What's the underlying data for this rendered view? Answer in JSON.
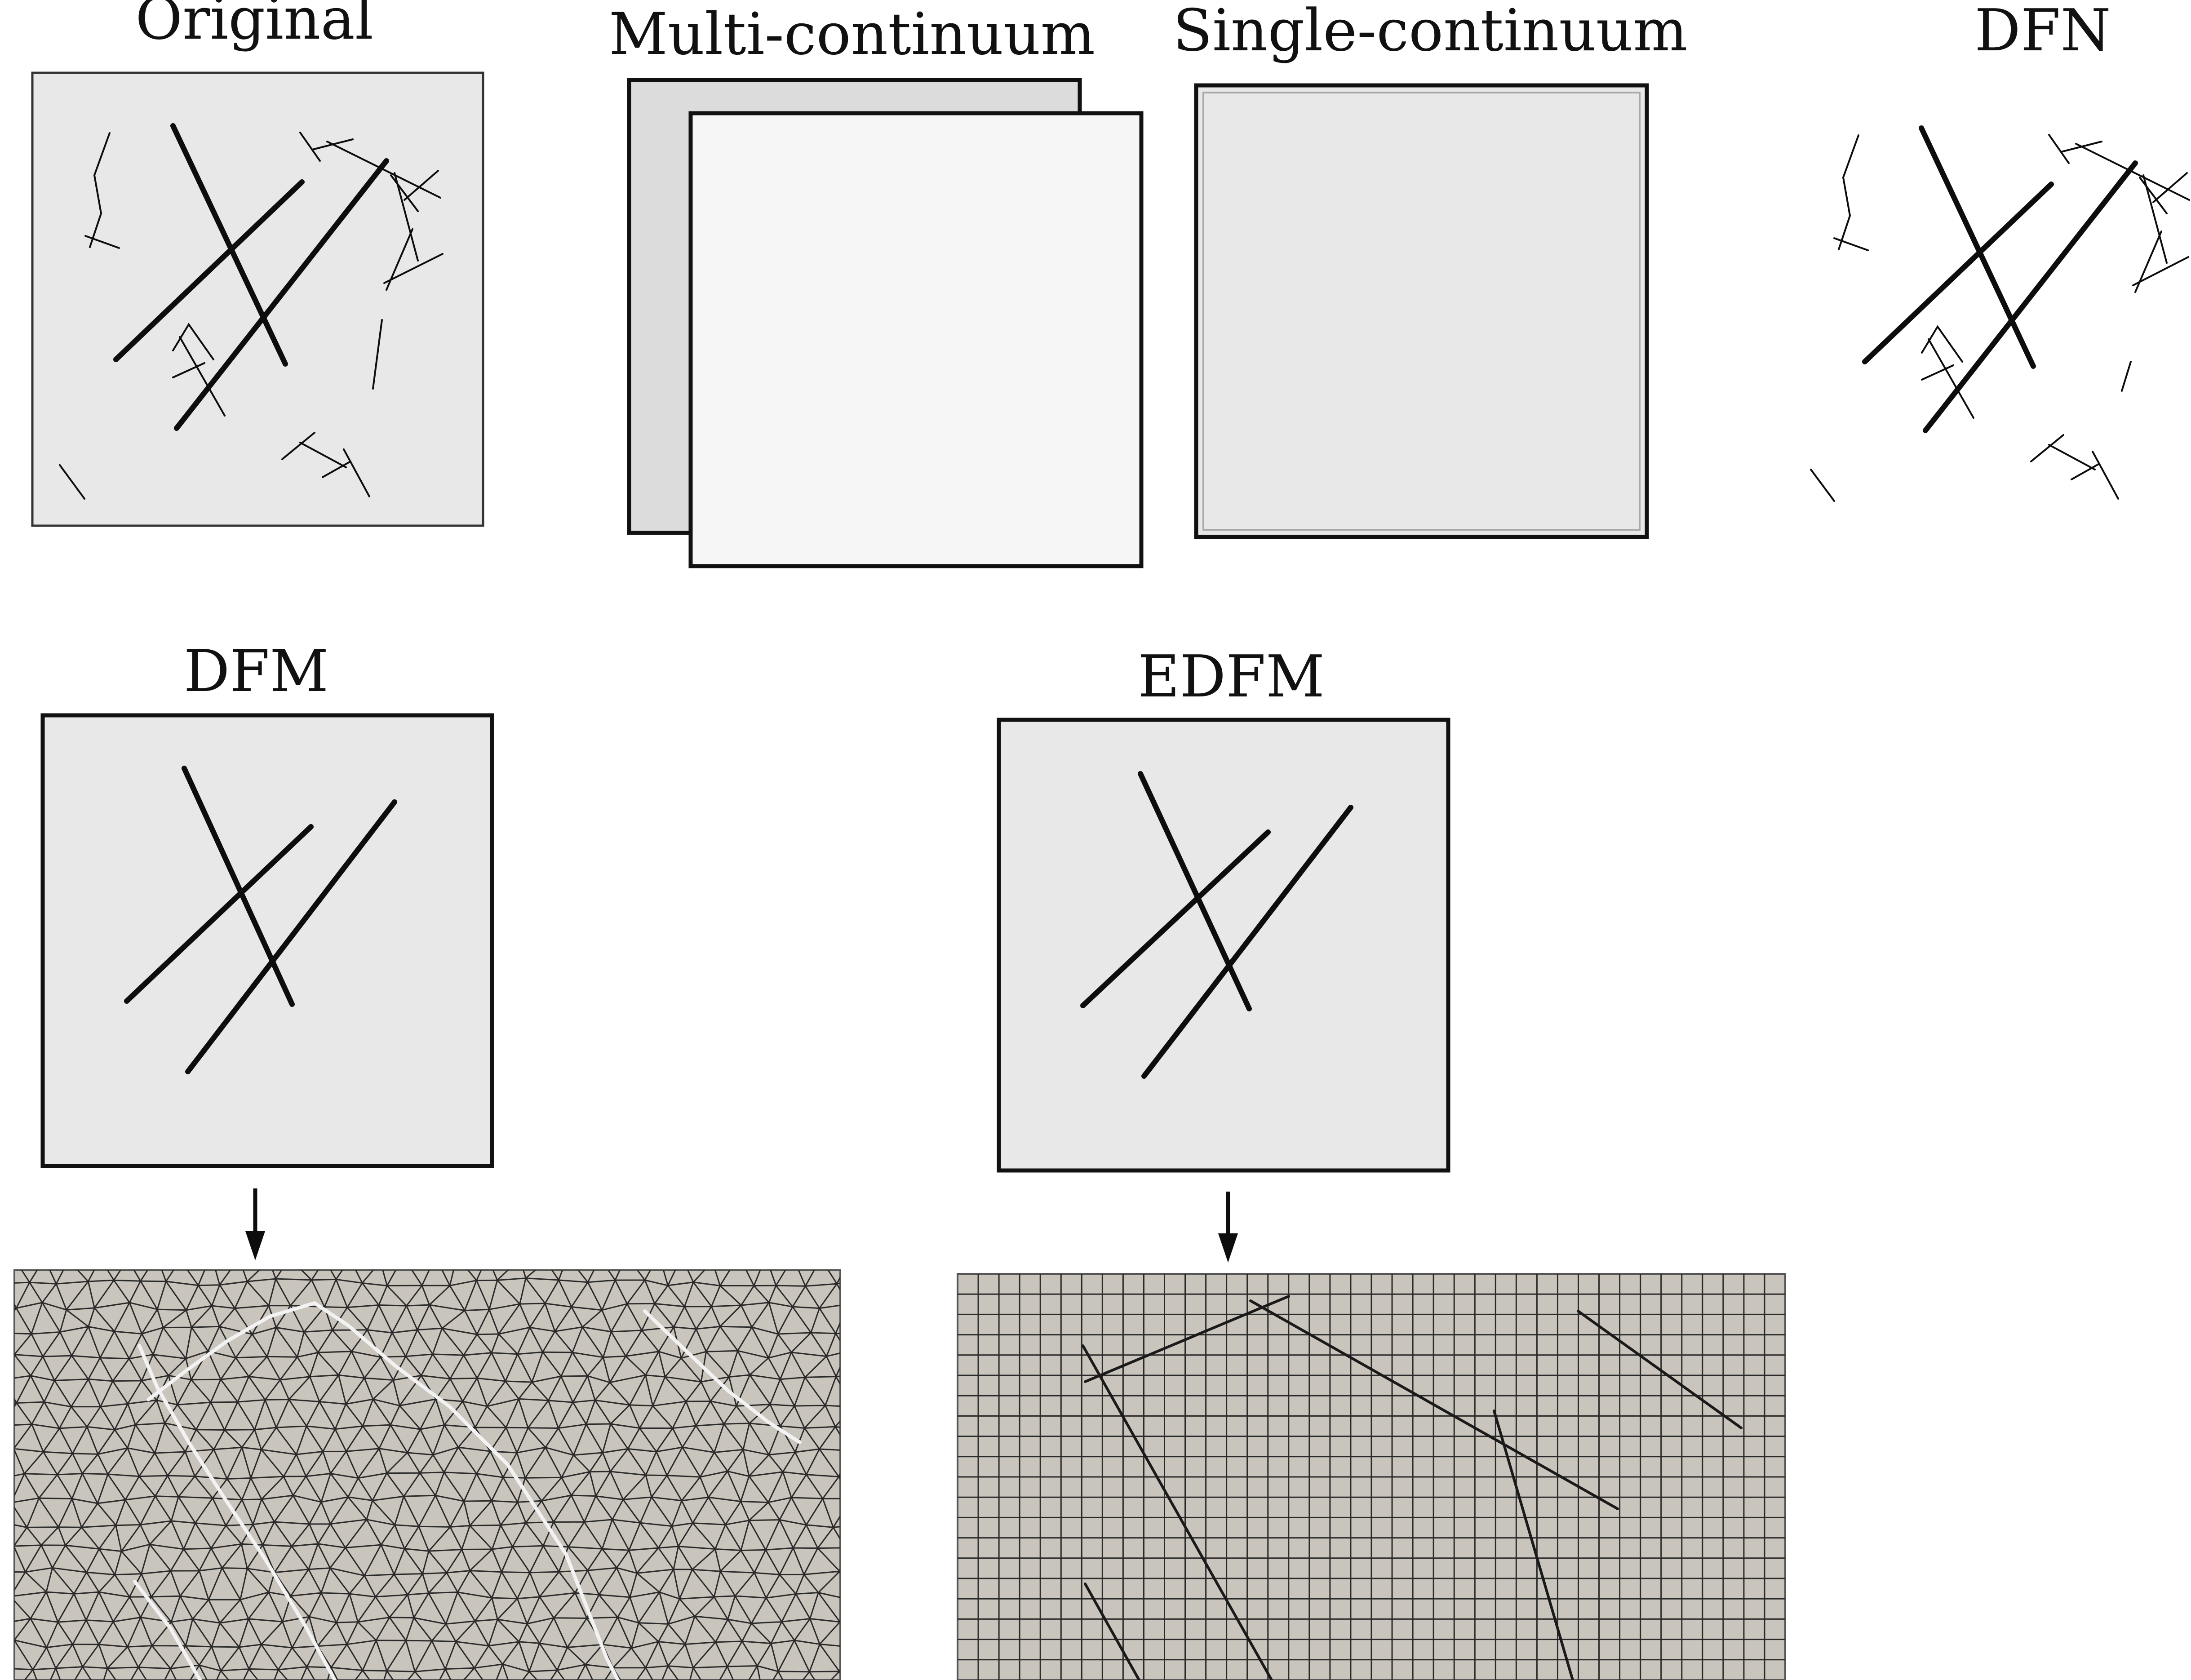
{
  "diagram": {
    "panels": {
      "original": {
        "title": "Original"
      },
      "multi_continuum": {
        "title": "Multi-continuum"
      },
      "single_continuum": {
        "title": "Single-continuum"
      },
      "dfn": {
        "title": "DFN"
      },
      "dfm": {
        "title": "DFM"
      },
      "edfm": {
        "title": "EDFM"
      }
    },
    "meshes": {
      "dfm_mesh": {
        "type": "unstructured-triangular"
      },
      "edfm_mesh": {
        "type": "structured-cartesian"
      }
    },
    "colors": {
      "matrix_fill": "#e8e8e8",
      "back_continuum_fill": "#dcdcdc",
      "front_continuum_fill": "#f6f6f6",
      "mesh_fill": "#c9c5bd",
      "mesh_line": "#2a2a2a",
      "dfm_fracture": "#f2f2f2",
      "edfm_fracture": "#1a1a1a"
    }
  }
}
